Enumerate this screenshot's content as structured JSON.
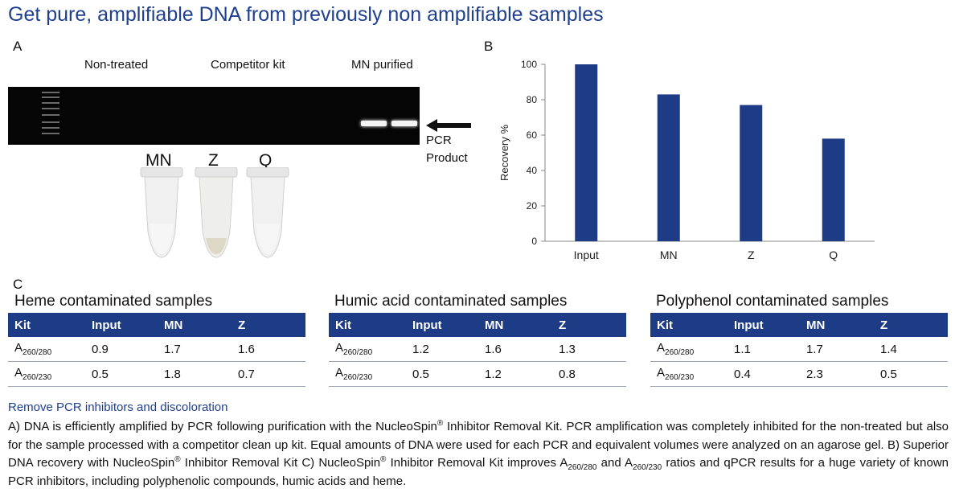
{
  "title": "Get pure, amplifiable DNA from previously non amplifiable samples",
  "panel_a": {
    "letter": "A",
    "lane_labels": [
      "Non-treated",
      "Competitor kit",
      "MN purified"
    ],
    "pcr_label_line1": "PCR",
    "pcr_label_line2": "Product",
    "tube_labels": [
      "MN",
      "Z",
      "Q"
    ]
  },
  "panel_b": {
    "letter": "B"
  },
  "chart_data": {
    "type": "bar",
    "categories": [
      "Input",
      "MN",
      "Z",
      "Q"
    ],
    "values": [
      100,
      83,
      77,
      58
    ],
    "title": "",
    "xlabel": "",
    "ylabel": "Recovery %",
    "ylim": [
      0,
      100
    ],
    "yticks": [
      0,
      20,
      40,
      60,
      80,
      100
    ],
    "bar_color": "#1d3c85",
    "grid": false
  },
  "panel_c": {
    "letter": "C",
    "header_color": "#1d3c85",
    "tables": [
      {
        "title": "Heme contaminated samples",
        "headers": [
          "Kit",
          "Input",
          "MN",
          "Z"
        ],
        "rows": [
          {
            "kit": "A",
            "sub": "260/280",
            "values": [
              "0.9",
              "1.7",
              "1.6"
            ]
          },
          {
            "kit": "A",
            "sub": "260/230",
            "values": [
              "0.5",
              "1.8",
              "0.7"
            ]
          }
        ]
      },
      {
        "title": "Humic acid contaminated samples",
        "headers": [
          "Kit",
          "Input",
          "MN",
          "Z"
        ],
        "rows": [
          {
            "kit": "A",
            "sub": "260/280",
            "values": [
              "1.2",
              "1.6",
              "1.3"
            ]
          },
          {
            "kit": "A",
            "sub": "260/230",
            "values": [
              "0.5",
              "1.2",
              "0.8"
            ]
          }
        ]
      },
      {
        "title": "Polyphenol contaminated samples",
        "headers": [
          "Kit",
          "Input",
          "MN",
          "Z"
        ],
        "rows": [
          {
            "kit": "A",
            "sub": "260/280",
            "values": [
              "1.1",
              "1.7",
              "1.4"
            ]
          },
          {
            "kit": "A",
            "sub": "260/230",
            "values": [
              "0.4",
              "2.3",
              "0.5"
            ]
          }
        ]
      }
    ]
  },
  "caption": {
    "title": "Remove PCR inhibitors and discoloration",
    "part1": "A) DNA is efficiently amplified by PCR following purification with the NucleoSpin",
    "reg": "®",
    "part2": " Inhibitor Removal Kit. PCR amplification was completely inhibited for the non-treated but also for the sample processed with a competitor clean up kit. Equal amounts of DNA were used for each PCR and equivalent volumes were analyzed on an agarose gel. B) Superior DNA recovery with NucleoSpin",
    "part3": " Inhibitor Removal Kit C) NucleoSpin",
    "part4": " Inhibitor Removal Kit improves A",
    "sub1": "260/280",
    "part5": " and A",
    "sub2": "260/230",
    "part6": " ratios and qPCR results for a huge variety of known PCR inhibitors, including polyphenolic compounds, humic acids and heme."
  }
}
